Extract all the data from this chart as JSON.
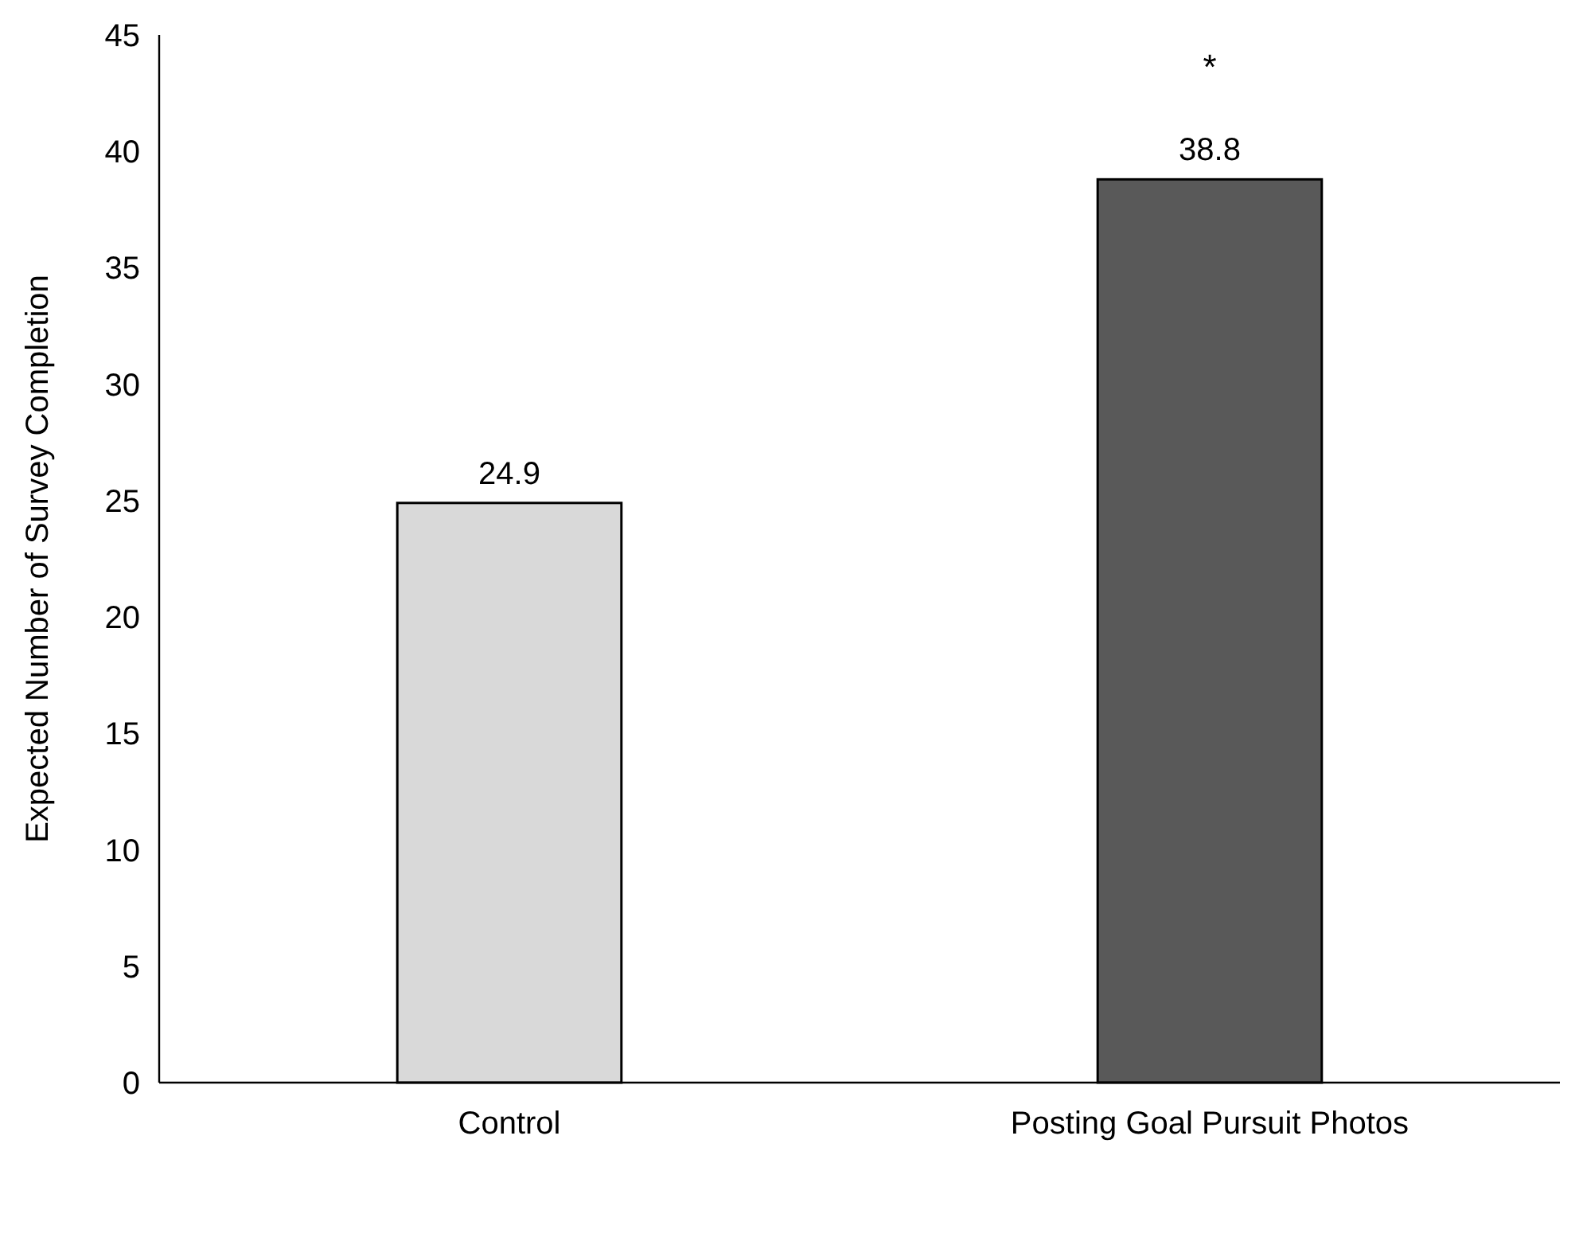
{
  "chart_data": {
    "type": "bar",
    "ylabel": "Expected Number of Survey Completion",
    "categories": [
      "Control",
      "Posting Goal Pursuit Photos"
    ],
    "values": [
      24.9,
      38.8
    ],
    "colors": [
      "#d9d9d9",
      "#595959"
    ],
    "ylim": [
      0,
      45
    ],
    "yticks": [
      0,
      5,
      10,
      15,
      20,
      25,
      30,
      35,
      40,
      45
    ],
    "data_labels": true,
    "grid": false,
    "annotations": [
      "*"
    ]
  }
}
